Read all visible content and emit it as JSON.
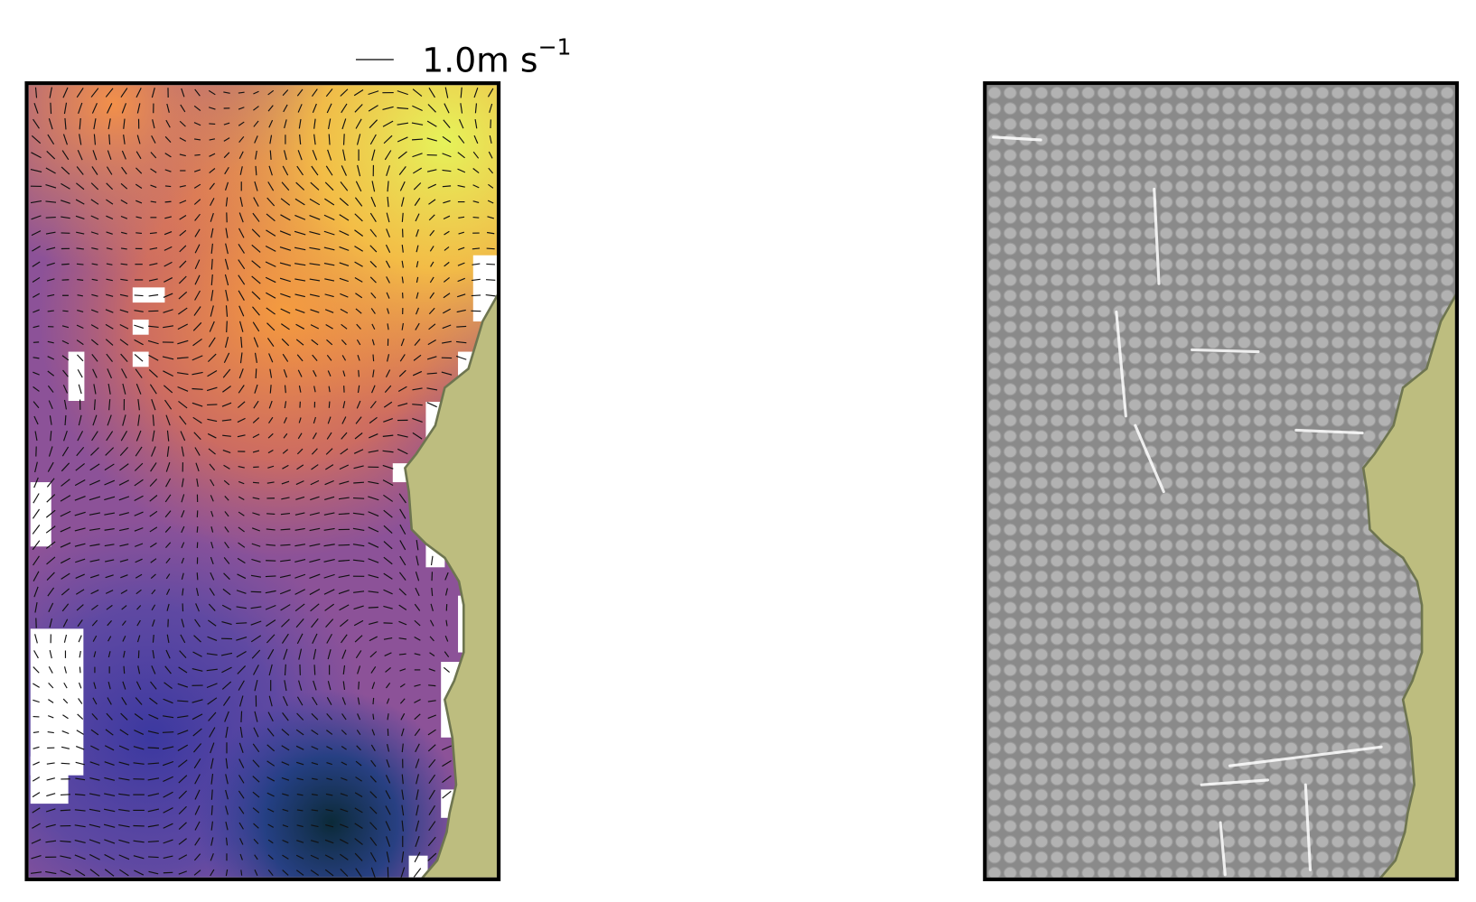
{
  "quiver_key": {
    "value": 1.0,
    "label": "1.0m s",
    "superscript": "−1"
  }
}
